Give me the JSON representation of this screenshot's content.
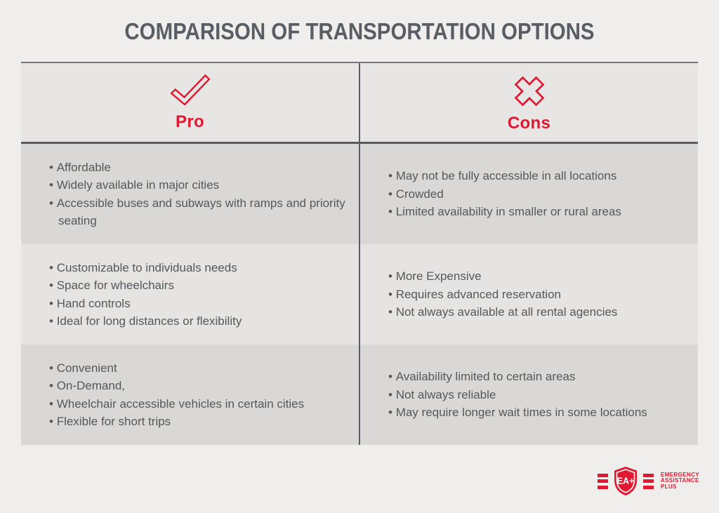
{
  "page": {
    "title": "COMPARISON OF TRANSPORTATION OPTIONS"
  },
  "colors": {
    "accent_red": "#e01931",
    "title_gray": "#585e63",
    "body_text_gray": "#54585b",
    "row_dark": "#d9d8d6",
    "row_light": "#e5e4e2",
    "header_bg": "#e7e6e5",
    "divider_gray": "#595b5e"
  },
  "table": {
    "columns": [
      {
        "label": "Pro",
        "icon": "check-icon"
      },
      {
        "label": "Cons",
        "icon": "x-icon"
      }
    ],
    "rows": [
      {
        "pros": [
          "Affordable",
          "Widely available in major cities",
          "Accessible buses and subways with ramps and priority seating"
        ],
        "cons": [
          "May not be fully accessible in all locations",
          "Crowded",
          "Limited availability in smaller or rural areas"
        ]
      },
      {
        "pros": [
          "Customizable to individuals needs",
          "Space for wheelchairs",
          "Hand controls",
          "Ideal for long distances or flexibility"
        ],
        "cons": [
          "More Expensive",
          "Requires advanced reservation",
          "Not always available at all rental agencies"
        ]
      },
      {
        "pros": [
          "Convenient",
          "On-Demand,",
          "Wheelchair accessible vehicles in certain cities",
          "Flexible for short trips"
        ],
        "cons": [
          "Availability limited to certain areas",
          "Not always reliable",
          "May require longer wait times in some locations"
        ]
      }
    ]
  },
  "logo": {
    "shield_text": "EA+",
    "lines": [
      "EMERGENCY",
      "ASSISTANCE",
      "PLUS"
    ]
  }
}
